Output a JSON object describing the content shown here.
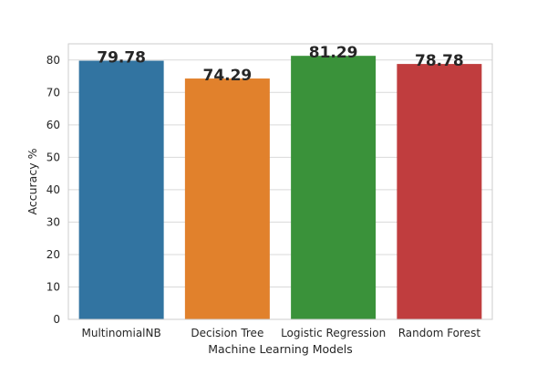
{
  "chart_data": {
    "type": "bar",
    "categories": [
      "MultinomialNB",
      "Decision Tree",
      "Logistic Regression",
      "Random Forest"
    ],
    "values": [
      79.78,
      74.29,
      81.29,
      78.78
    ],
    "data_labels": [
      "79.78",
      "74.29",
      "81.29",
      "78.78"
    ],
    "colors": [
      "#3274a1",
      "#e1812c",
      "#3a923a",
      "#c03d3e"
    ],
    "xlabel": "Machine Learning Models",
    "ylabel": "Accuracy %",
    "ylim": [
      0,
      85
    ],
    "yticks": [
      0,
      10,
      20,
      30,
      40,
      50,
      60,
      70,
      80
    ],
    "grid": "horizontal",
    "legend": "none"
  }
}
